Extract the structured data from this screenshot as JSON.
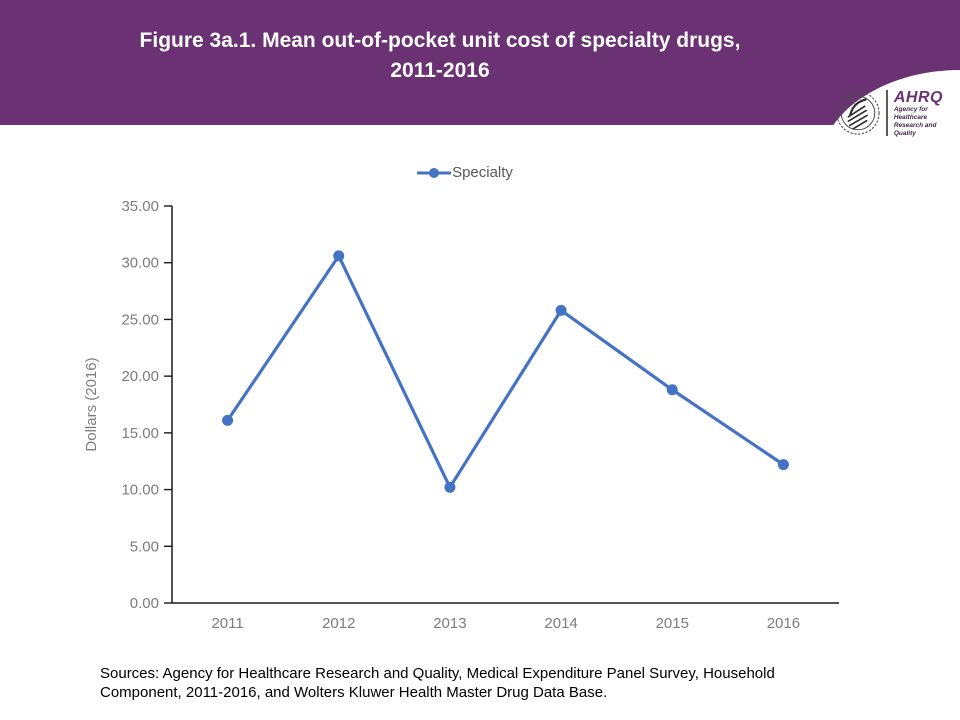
{
  "banner": {
    "title_line1": "Figure 3a.1. Mean out-of-pocket unit cost of specialty drugs,",
    "title_line2": "2011-2016",
    "bg_color": "#6a3173",
    "title_color": "#ffffff"
  },
  "logo": {
    "seal": "hhs-eagle-seal-icon",
    "wordmark": "AHRQ",
    "wordmark_color": "#6a3173",
    "tagline_line1": "Agency for Healthcare",
    "tagline_line2": "Research and Quality"
  },
  "legend": {
    "label": "Specialty",
    "marker": "line-with-circle-marker",
    "color": "#4472c4"
  },
  "chart_data": {
    "type": "line",
    "title": "",
    "categories": [
      "2011",
      "2012",
      "2013",
      "2014",
      "2015",
      "2016"
    ],
    "series": [
      {
        "name": "Specialty",
        "values": [
          16.1,
          30.6,
          10.2,
          25.8,
          18.8,
          12.2
        ]
      }
    ],
    "xlabel": "",
    "ylabel": "Dollars (2016)",
    "ylim": [
      0,
      35
    ],
    "ytick_step": 5,
    "yticks": [
      "0.00",
      "5.00",
      "10.00",
      "15.00",
      "20.00",
      "25.00",
      "30.00",
      "35.00"
    ],
    "grid": false,
    "legend_position": "top",
    "line_color": "#4472c4",
    "marker_color": "#4472c4",
    "axis_color": "#1a1a1a",
    "tick_label_color": "#7d7d7d",
    "axis_title_color": "#7d7d7d"
  },
  "footer": {
    "sources_text": "Sources: Agency for Healthcare Research and Quality, Medical Expenditure Panel Survey, Household Component, 2011-2016, and Wolters Kluwer Health Master Drug Data Base."
  }
}
